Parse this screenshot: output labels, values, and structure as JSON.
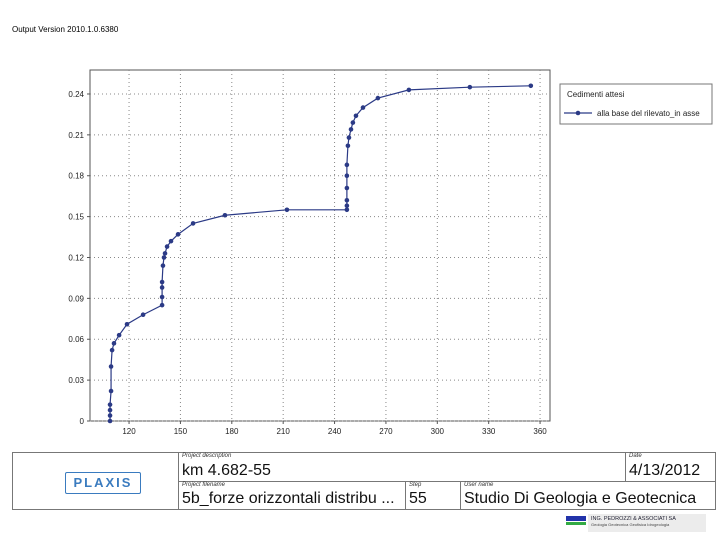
{
  "output_version": "Output Version 2010.1.0.6380",
  "chart_data": {
    "type": "line",
    "legend_title": "Cedimenti attesi",
    "legend_position": "right",
    "grid": true,
    "x": [
      108.9,
      108.9,
      108.9,
      108.9,
      109.5,
      109.5,
      110.1,
      111.2,
      114.2,
      118.8,
      128.2,
      139.3,
      139.3,
      139.3,
      139.3,
      139.8,
      140.4,
      141.0,
      142.2,
      144.5,
      148.6,
      157.4,
      176.0,
      212.2,
      247.2,
      247.2,
      247.2,
      247.2,
      247.2,
      247.2,
      247.8,
      248.4,
      249.6,
      250.7,
      252.5,
      256.6,
      265.3,
      283.4,
      319.0,
      354.6
    ],
    "series": [
      {
        "name": "alla base del rilevato_in asse",
        "color": "#2b3a86",
        "values": [
          0,
          0.004,
          0.008,
          0.012,
          0.022,
          0.04,
          0.052,
          0.057,
          0.063,
          0.071,
          0.078,
          0.085,
          0.091,
          0.098,
          0.102,
          0.114,
          0.12,
          0.123,
          0.128,
          0.132,
          0.137,
          0.145,
          0.151,
          0.155,
          0.155,
          0.158,
          0.162,
          0.171,
          0.18,
          0.188,
          0.202,
          0.208,
          0.214,
          0.219,
          0.224,
          0.23,
          0.237,
          0.243,
          0.245,
          0.246
        ]
      }
    ],
    "xlim": [
      97.2,
      365.8
    ],
    "xticks": [
      120,
      150,
      180,
      210,
      240,
      270,
      300,
      330,
      360
    ],
    "ylim": [
      0,
      0.2576
    ],
    "yticks": [
      0,
      0.03,
      0.06,
      0.09,
      0.12,
      0.15,
      0.18,
      0.21,
      0.24
    ]
  },
  "footer": {
    "logo": "PLAXIS",
    "project_description_label": "Project description",
    "project_description": "km 4.682-55",
    "date_label": "Date",
    "date": "4/13/2012",
    "project_filename_label": "Project filename",
    "project_filename": "5b_forze orizzontali distribu ...",
    "step_label": "Step",
    "step": 55,
    "user_name_label": "User name",
    "user_name": "Studio Di Geologia e Geotecnica",
    "company": "ING. PEDROZZI & ASSOCIATI SA",
    "company_sub": "Geologia Geotecnica Geofisica Idrogeologia"
  }
}
